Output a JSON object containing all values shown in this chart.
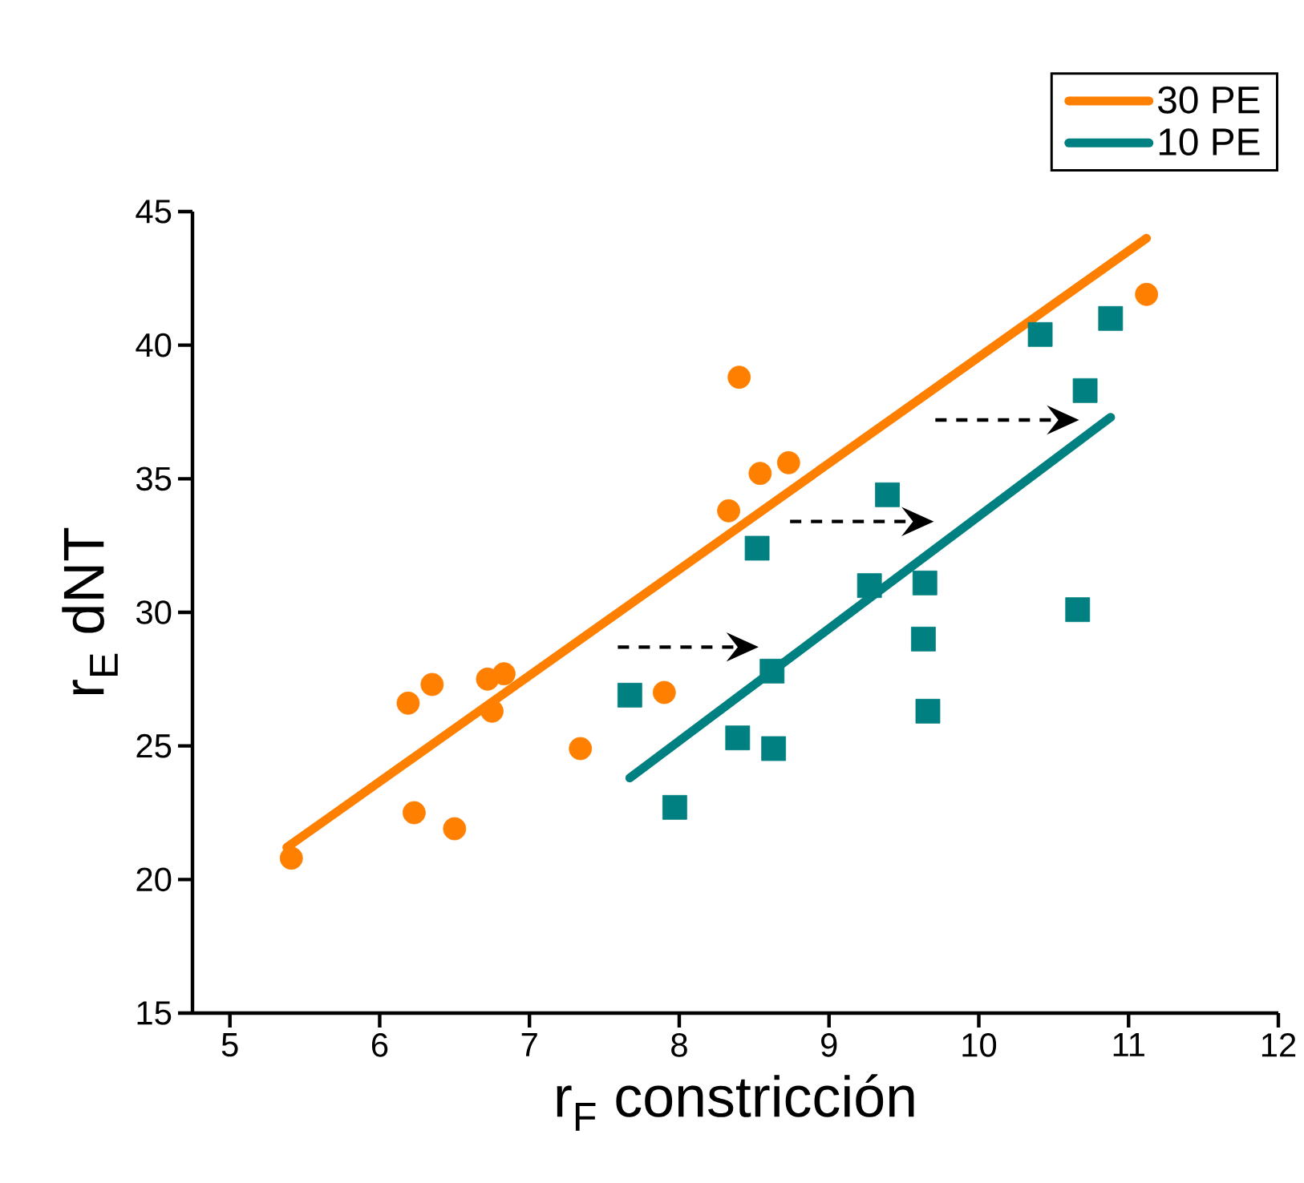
{
  "chart_data": {
    "type": "scatter",
    "xlabel": "r$_{F}$ constricción",
    "ylabel": "r$_{E}$ dNT",
    "xlim": [
      4.75,
      12
    ],
    "ylim": [
      15,
      45
    ],
    "xticks": [
      5,
      6,
      7,
      8,
      9,
      10,
      11,
      12
    ],
    "yticks": [
      15,
      20,
      25,
      30,
      35,
      40,
      45
    ],
    "legend": "top right",
    "series": [
      {
        "type": "line",
        "name": "30 PE",
        "color": "#ff8000",
        "x": [
          5.38,
          11.12
        ],
        "values": [
          21.2,
          44.0
        ]
      },
      {
        "type": "line",
        "name": "10 PE",
        "color": "#008080",
        "x": [
          7.67,
          10.88
        ],
        "values": [
          23.8,
          37.3
        ]
      },
      {
        "color": "#ff8000",
        "marker": "circle",
        "x": [
          5.41,
          6.23,
          6.19,
          6.35,
          6.5,
          6.72,
          6.75,
          6.83,
          7.34,
          7.9,
          8.33,
          8.4,
          8.54,
          8.73,
          11.12
        ],
        "values": [
          20.8,
          22.5,
          26.6,
          27.3,
          21.9,
          27.5,
          26.3,
          27.7,
          24.9,
          27.0,
          33.8,
          38.8,
          35.2,
          35.6,
          41.9
        ]
      },
      {
        "color": "#008080",
        "marker": "square",
        "x": [
          7.67,
          7.97,
          8.39,
          8.63,
          8.62,
          8.52,
          9.39,
          9.27,
          9.64,
          9.63,
          9.66,
          10.66,
          10.71,
          10.41,
          10.88
        ],
        "values": [
          26.9,
          22.7,
          25.3,
          24.9,
          27.8,
          32.4,
          34.4,
          31.0,
          31.1,
          29.0,
          26.3,
          30.1,
          38.3,
          40.4,
          41.0
        ]
      }
    ]
  }
}
